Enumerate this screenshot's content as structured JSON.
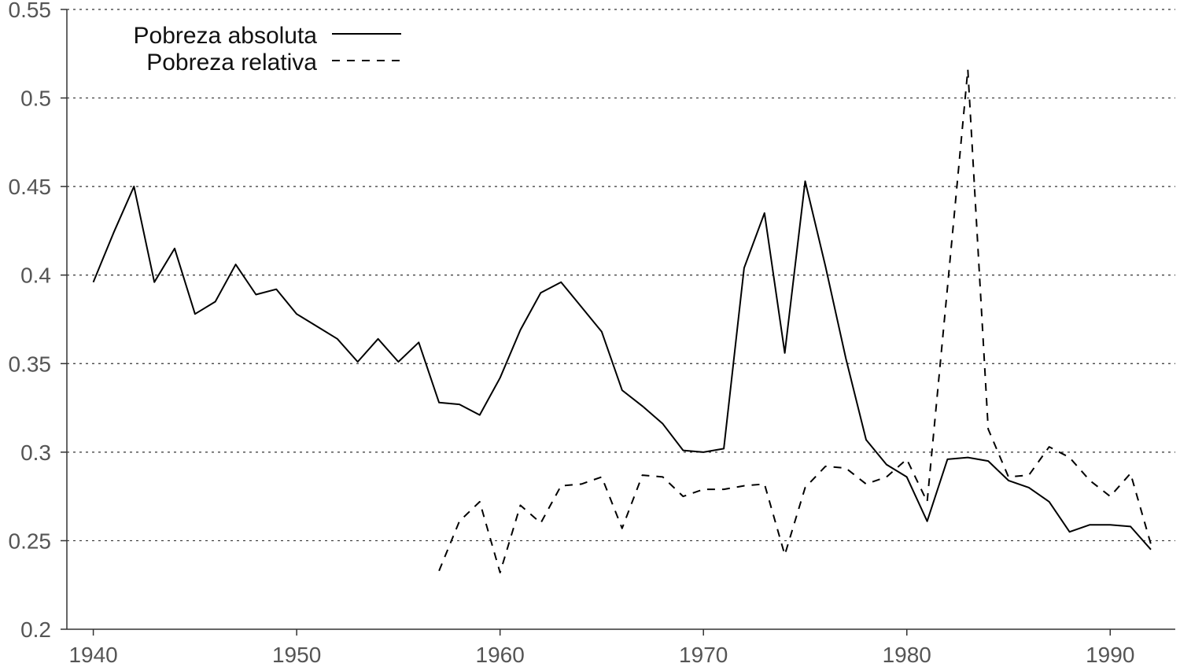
{
  "chart_data": {
    "type": "line",
    "title": "",
    "xlabel": "",
    "ylabel": "",
    "xlim": [
      1938.7,
      1993.2
    ],
    "ylim": [
      0.2,
      0.55
    ],
    "x_ticks": [
      1940,
      1950,
      1960,
      1970,
      1980,
      1990
    ],
    "x_tick_labels": [
      "1940",
      "1950",
      "1960",
      "1970",
      "1980",
      "1990"
    ],
    "y_ticks": [
      0.2,
      0.25,
      0.3,
      0.35,
      0.4,
      0.45,
      0.5,
      0.55
    ],
    "y_tick_labels": [
      "0.2",
      "0.25",
      "0.3",
      "0.35",
      "0.4",
      "0.45",
      "0.5",
      "0.55"
    ],
    "grid": "horizontal dotted",
    "legend_position": "top-left",
    "series": [
      {
        "name": "Pobreza absoluta",
        "style": "solid",
        "color": "#000000",
        "x": [
          1940,
          1941,
          1942,
          1943,
          1944,
          1945,
          1946,
          1947,
          1948,
          1949,
          1950,
          1951,
          1952,
          1953,
          1954,
          1955,
          1956,
          1957,
          1958,
          1959,
          1960,
          1961,
          1962,
          1963,
          1964,
          1965,
          1966,
          1967,
          1968,
          1969,
          1970,
          1971,
          1972,
          1973,
          1974,
          1975,
          1976,
          1977,
          1978,
          1979,
          1980,
          1981,
          1982,
          1983,
          1984,
          1985,
          1986,
          1987,
          1988,
          1989,
          1990,
          1991,
          1992
        ],
        "y": [
          0.396,
          0.424,
          0.45,
          0.396,
          0.415,
          0.378,
          0.385,
          0.406,
          0.389,
          0.392,
          0.378,
          0.371,
          0.364,
          0.351,
          0.364,
          0.351,
          0.362,
          0.328,
          0.327,
          0.321,
          0.342,
          0.369,
          0.39,
          0.396,
          0.382,
          0.368,
          0.335,
          0.326,
          0.316,
          0.301,
          0.3,
          0.302,
          0.404,
          0.435,
          0.356,
          0.453,
          0.405,
          0.353,
          0.307,
          0.293,
          0.286,
          0.261,
          0.296,
          0.297,
          0.295,
          0.284,
          0.28,
          0.272,
          0.255,
          0.259,
          0.259,
          0.258,
          0.245
        ]
      },
      {
        "name": "Pobreza relativa",
        "style": "dashed",
        "color": "#000000",
        "x": [
          1957,
          1958,
          1959,
          1960,
          1961,
          1962,
          1963,
          1964,
          1965,
          1966,
          1967,
          1968,
          1969,
          1970,
          1971,
          1972,
          1973,
          1974,
          1975,
          1976,
          1977,
          1978,
          1979,
          1980,
          1981,
          1982,
          1983,
          1984,
          1985,
          1986,
          1987,
          1988,
          1989,
          1990,
          1991,
          1992
        ],
        "y": [
          0.233,
          0.261,
          0.272,
          0.232,
          0.27,
          0.26,
          0.281,
          0.282,
          0.286,
          0.257,
          0.287,
          0.286,
          0.275,
          0.279,
          0.279,
          0.281,
          0.282,
          0.242,
          0.28,
          0.292,
          0.291,
          0.282,
          0.286,
          0.296,
          0.272,
          0.393,
          0.516,
          0.313,
          0.286,
          0.287,
          0.303,
          0.297,
          0.284,
          0.275,
          0.288,
          0.248
        ]
      }
    ]
  }
}
